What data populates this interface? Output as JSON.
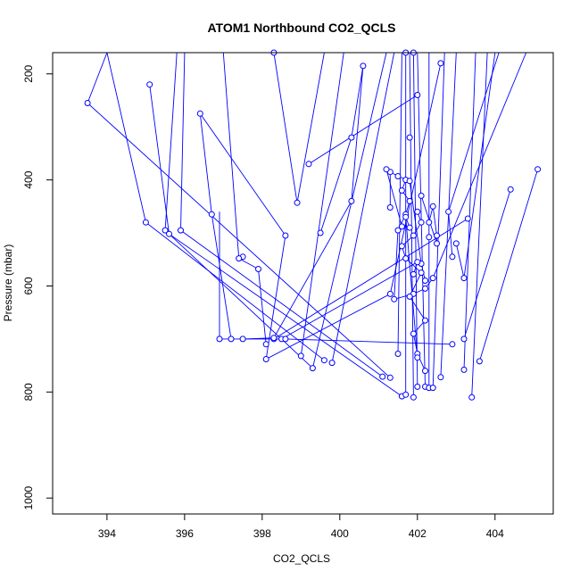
{
  "chart_data": {
    "type": "line",
    "title": "ATOM1 Northbound CO2_QCLS",
    "xlabel": "CO2_QCLS",
    "ylabel": "Pressure (mbar)",
    "xlim": [
      392.6,
      405.5
    ],
    "ylim": [
      1030,
      160
    ],
    "y_reversed": true,
    "x_ticks": [
      394,
      396,
      398,
      400,
      402,
      404
    ],
    "y_ticks": [
      200,
      400,
      600,
      800,
      1000
    ],
    "grid": false,
    "legend": "none",
    "series_color": "#0000ff",
    "points": [
      [
        393.5,
        255
      ],
      [
        395.0,
        480
      ],
      [
        395.5,
        495
      ],
      [
        397.5,
        545
      ],
      [
        399.6,
        740
      ],
      [
        395.1,
        220
      ],
      [
        395.6,
        502
      ],
      [
        395.9,
        495
      ],
      [
        397.4,
        548
      ],
      [
        401.8,
        320
      ],
      [
        396.4,
        275
      ],
      [
        396.7,
        465
      ],
      [
        397.9,
        568
      ],
      [
        401.7,
        160
      ],
      [
        398.1,
        710
      ],
      [
        396.9,
        700
      ],
      [
        397.2,
        700
      ],
      [
        397.5,
        700
      ],
      [
        398.3,
        700
      ],
      [
        398.5,
        700
      ],
      [
        398.6,
        700
      ],
      [
        398.1,
        738
      ],
      [
        398.6,
        505
      ],
      [
        401.9,
        160
      ],
      [
        398.3,
        698
      ],
      [
        398.9,
        443
      ],
      [
        398.3,
        160
      ],
      [
        399.2,
        370
      ],
      [
        402.0,
        240
      ],
      [
        399.0,
        732
      ],
      [
        399.3,
        755
      ],
      [
        399.8,
        745
      ],
      [
        401.3,
        615
      ],
      [
        402.6,
        180
      ],
      [
        401.1,
        771
      ],
      [
        401.3,
        773
      ],
      [
        401.6,
        808
      ],
      [
        401.7,
        805
      ],
      [
        401.9,
        810
      ],
      [
        402.0,
        790
      ],
      [
        402.2,
        790
      ],
      [
        402.3,
        792
      ],
      [
        402.4,
        792
      ],
      [
        402.6,
        772
      ],
      [
        402.9,
        710
      ],
      [
        403.2,
        758
      ],
      [
        403.4,
        810
      ],
      [
        403.2,
        585
      ],
      [
        403.6,
        742
      ],
      [
        404.4,
        418
      ],
      [
        405.1,
        380
      ],
      [
        403.3,
        473
      ],
      [
        403.0,
        520
      ],
      [
        402.9,
        545
      ],
      [
        402.8,
        460
      ],
      [
        402.4,
        585
      ],
      [
        402.2,
        605
      ],
      [
        401.9,
        615
      ],
      [
        401.4,
        625
      ],
      [
        401.5,
        495
      ],
      [
        401.7,
        465
      ],
      [
        401.8,
        440
      ],
      [
        401.6,
        420
      ],
      [
        401.7,
        400
      ],
      [
        402.0,
        460
      ],
      [
        402.1,
        480
      ],
      [
        401.9,
        505
      ],
      [
        401.6,
        525
      ],
      [
        401.7,
        548
      ],
      [
        402.1,
        575
      ],
      [
        401.8,
        620
      ],
      [
        402.2,
        665
      ],
      [
        401.9,
        690
      ],
      [
        402.0,
        728
      ],
      [
        401.5,
        728
      ],
      [
        402.3,
        508
      ],
      [
        402.5,
        505
      ],
      [
        403.2,
        700
      ],
      [
        402.5,
        520
      ],
      [
        402.1,
        430
      ],
      [
        401.3,
        452
      ],
      [
        401.3,
        385
      ],
      [
        401.5,
        393
      ],
      [
        401.8,
        402
      ],
      [
        402.1,
        558
      ],
      [
        402.2,
        590
      ],
      [
        402.3,
        480
      ],
      [
        402.4,
        450
      ],
      [
        402.0,
        555
      ],
      [
        401.9,
        578
      ],
      [
        401.2,
        380
      ],
      [
        400.3,
        440
      ],
      [
        399.5,
        500
      ],
      [
        400.3,
        320
      ],
      [
        400.6,
        185
      ],
      [
        401.6,
        488
      ],
      [
        401.8,
        490
      ],
      [
        401.7,
        470
      ],
      [
        402.2,
        760
      ],
      [
        402.0,
        735
      ]
    ],
    "path_segments": [
      [
        [
          394.0,
          160
        ],
        [
          393.5,
          255
        ],
        [
          401.3,
          773
        ]
      ],
      [
        [
          394.0,
          160
        ],
        [
          395.0,
          480
        ],
        [
          399.6,
          740
        ]
      ],
      [
        [
          395.8,
          160
        ],
        [
          395.5,
          495
        ],
        [
          399.3,
          755
        ]
      ],
      [
        [
          395.1,
          220
        ],
        [
          395.6,
          502
        ],
        [
          401.6,
          808
        ]
      ],
      [
        [
          396.0,
          160
        ],
        [
          395.9,
          495
        ],
        [
          401.1,
          771
        ]
      ],
      [
        [
          397.0,
          160
        ],
        [
          397.4,
          548
        ],
        [
          397.9,
          568
        ],
        [
          398.1,
          710
        ]
      ],
      [
        [
          396.4,
          275
        ],
        [
          396.7,
          465
        ],
        [
          397.2,
          700
        ]
      ],
      [
        [
          396.4,
          275
        ],
        [
          398.6,
          505
        ]
      ],
      [
        [
          396.9,
          460
        ],
        [
          396.9,
          700
        ],
        [
          398.6,
          700
        ]
      ],
      [
        [
          397.5,
          700
        ],
        [
          398.3,
          698
        ]
      ],
      [
        [
          398.3,
          160
        ],
        [
          398.9,
          443
        ],
        [
          399.6,
          160
        ]
      ],
      [
        [
          398.6,
          505
        ],
        [
          398.1,
          738
        ],
        [
          401.3,
          615
        ],
        [
          402.6,
          180
        ]
      ],
      [
        [
          399.2,
          370
        ],
        [
          402.0,
          240
        ]
      ],
      [
        [
          399.0,
          732
        ],
        [
          400.1,
          160
        ]
      ],
      [
        [
          399.3,
          755
        ],
        [
          401.2,
          160
        ]
      ],
      [
        [
          399.8,
          745
        ],
        [
          401.4,
          160
        ]
      ],
      [
        [
          398.3,
          700
        ],
        [
          403.3,
          473
        ]
      ],
      [
        [
          398.5,
          700
        ],
        [
          402.0,
          555
        ],
        [
          401.9,
          578
        ]
      ],
      [
        [
          398.6,
          700
        ],
        [
          402.9,
          710
        ]
      ],
      [
        [
          399.5,
          500
        ],
        [
          400.3,
          320
        ],
        [
          400.6,
          185
        ],
        [
          400.3,
          440
        ],
        [
          398.3,
          698
        ]
      ],
      [
        [
          401.6,
          160
        ],
        [
          401.5,
          728
        ]
      ],
      [
        [
          401.7,
          160
        ],
        [
          401.7,
          805
        ]
      ],
      [
        [
          401.8,
          160
        ],
        [
          401.9,
          810
        ]
      ],
      [
        [
          401.9,
          160
        ],
        [
          402.0,
          790
        ]
      ],
      [
        [
          402.0,
          160
        ],
        [
          402.2,
          790
        ]
      ],
      [
        [
          402.3,
          160
        ],
        [
          402.3,
          792
        ]
      ],
      [
        [
          402.7,
          160
        ],
        [
          402.4,
          792
        ]
      ],
      [
        [
          403.0,
          160
        ],
        [
          402.6,
          772
        ]
      ],
      [
        [
          403.5,
          160
        ],
        [
          403.2,
          758
        ]
      ],
      [
        [
          403.8,
          160
        ],
        [
          403.4,
          810
        ]
      ],
      [
        [
          404.0,
          160
        ],
        [
          403.2,
          585
        ],
        [
          403.0,
          520
        ]
      ],
      [
        [
          404.1,
          160
        ],
        [
          402.8,
          460
        ],
        [
          402.9,
          545
        ]
      ],
      [
        [
          404.4,
          418
        ],
        [
          403.2,
          700
        ]
      ],
      [
        [
          405.1,
          380
        ],
        [
          403.6,
          742
        ]
      ],
      [
        [
          404.8,
          160
        ],
        [
          402.4,
          585
        ],
        [
          402.2,
          605
        ]
      ],
      [
        [
          402.2,
          605
        ],
        [
          401.9,
          615
        ],
        [
          401.4,
          625
        ],
        [
          401.5,
          495
        ],
        [
          401.7,
          465
        ],
        [
          401.8,
          440
        ],
        [
          401.6,
          420
        ],
        [
          401.7,
          400
        ]
      ],
      [
        [
          402.0,
          460
        ],
        [
          402.1,
          480
        ],
        [
          401.9,
          505
        ],
        [
          401.6,
          525
        ],
        [
          401.7,
          548
        ],
        [
          402.1,
          575
        ],
        [
          401.8,
          620
        ],
        [
          402.2,
          665
        ],
        [
          401.9,
          690
        ],
        [
          402.0,
          728
        ],
        [
          402.2,
          760
        ]
      ],
      [
        [
          401.3,
          452
        ],
        [
          401.3,
          385
        ],
        [
          401.5,
          393
        ],
        [
          401.8,
          402
        ],
        [
          402.1,
          558
        ],
        [
          402.2,
          590
        ]
      ],
      [
        [
          402.3,
          480
        ],
        [
          402.4,
          450
        ],
        [
          402.5,
          505
        ],
        [
          402.5,
          520
        ],
        [
          402.1,
          430
        ]
      ],
      [
        [
          401.2,
          380
        ],
        [
          401.6,
          488
        ],
        [
          401.8,
          490
        ],
        [
          401.7,
          470
        ],
        [
          402.0,
          735
        ]
      ]
    ]
  }
}
